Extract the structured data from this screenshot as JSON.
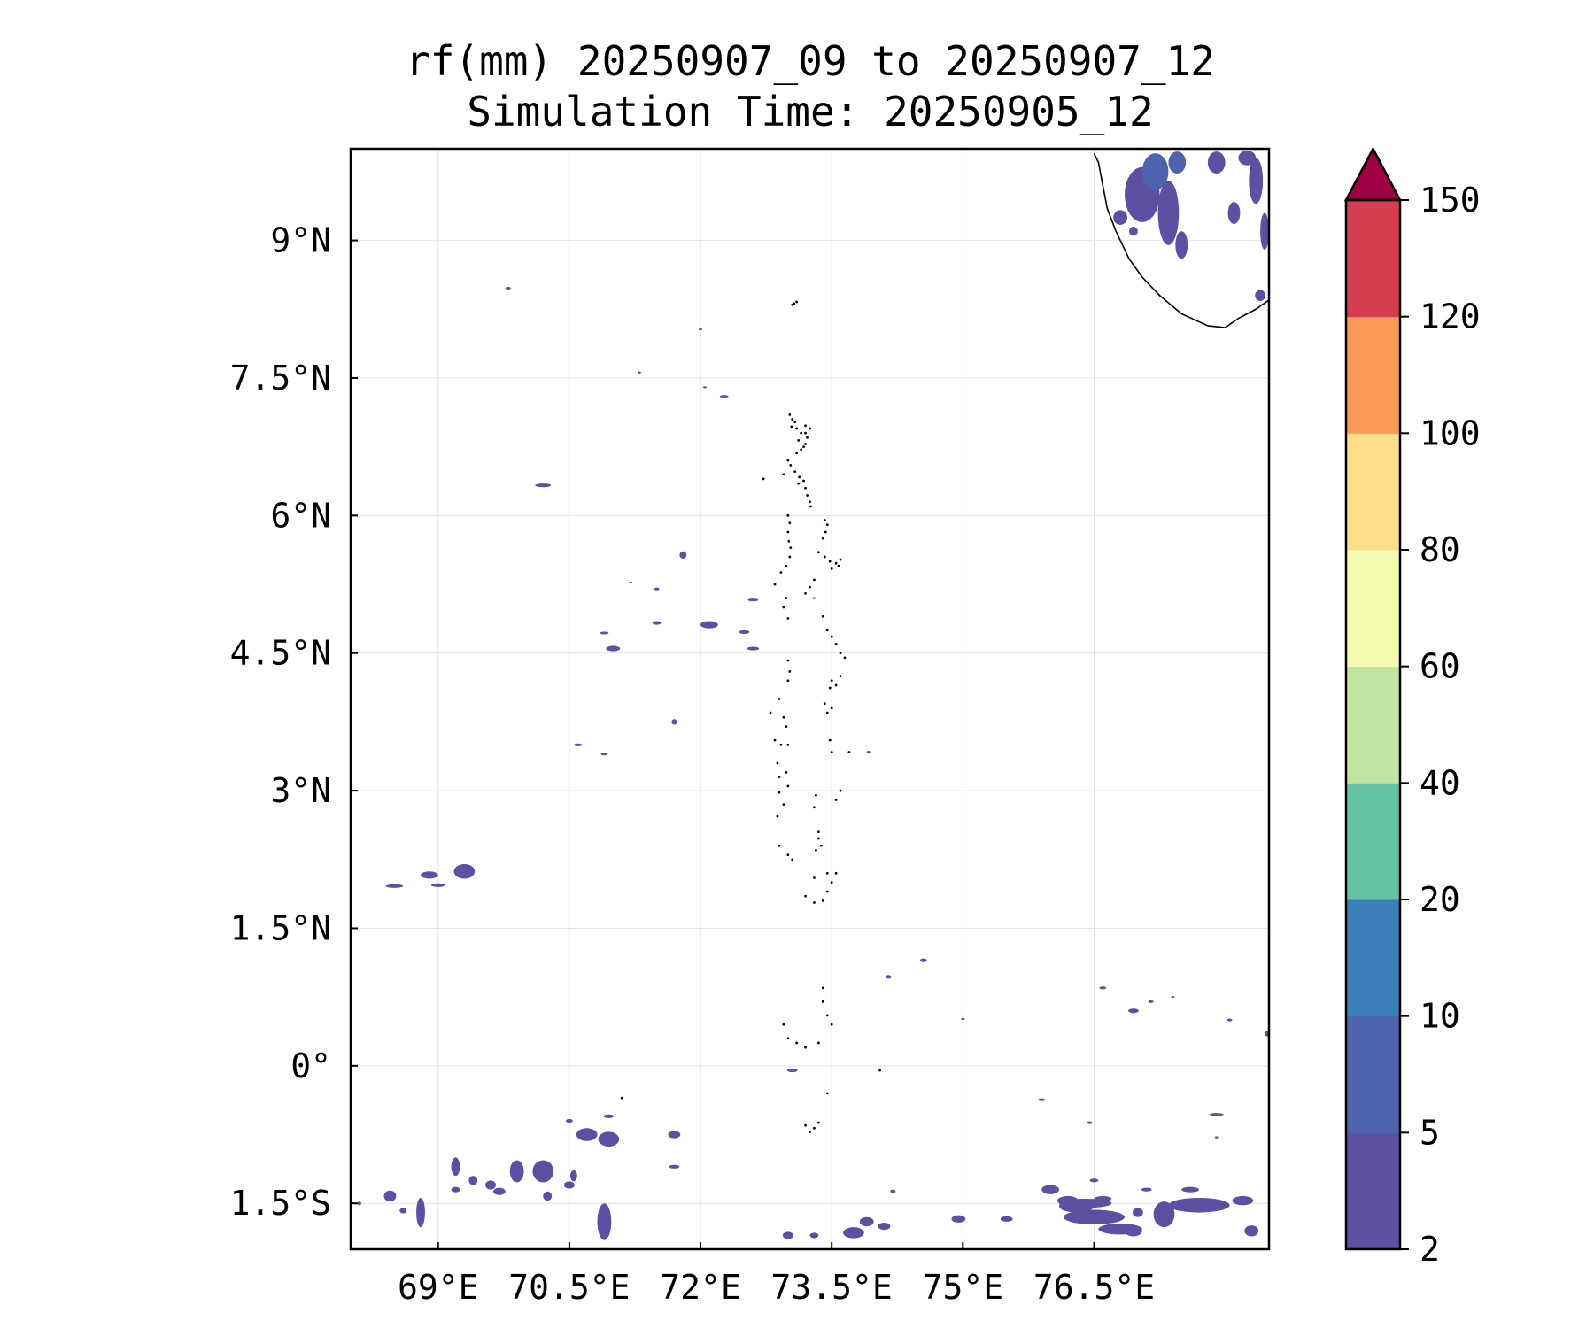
{
  "title": {
    "line1": "rf(mm) 20250907_09 to 20250907_12",
    "line2": "Simulation Time: 20250905_12"
  },
  "map": {
    "lon_range": [
      68.0,
      78.5
    ],
    "lat_range": [
      -2.0,
      10.0
    ],
    "lon_ticks": [
      69,
      70.5,
      72,
      73.5,
      75,
      76.5
    ],
    "lon_labels": [
      "69°E",
      "70.5°E",
      "72°E",
      "73.5°E",
      "75°E",
      "76.5°E"
    ],
    "lat_ticks": [
      9,
      7.5,
      6,
      4.5,
      3,
      1.5,
      0,
      -1.5
    ],
    "lat_labels": [
      "9°N",
      "7.5°N",
      "6°N",
      "4.5°N",
      "3°N",
      "1.5°N",
      "0°",
      "1.5°S"
    ],
    "gridlines": true,
    "coastline_color": "#000000"
  },
  "colorbar": {
    "levels": [
      2,
      5,
      10,
      20,
      40,
      60,
      80,
      100,
      120,
      150
    ],
    "level_labels": [
      "2",
      "5",
      "10",
      "20",
      "40",
      "60",
      "80",
      "100",
      "120",
      "150"
    ],
    "colors": [
      "#5e4fa2",
      "#4e63ad",
      "#3a7fb9",
      "#66c2a5",
      "#bfe5a0",
      "#f4faae",
      "#fddf8b",
      "#f99b57",
      "#d53e4f"
    ],
    "extend_color": "#9e0142",
    "extend": "max"
  },
  "rain_color": "#5e4fa2",
  "rain_color_mid": "#4e63ad"
}
